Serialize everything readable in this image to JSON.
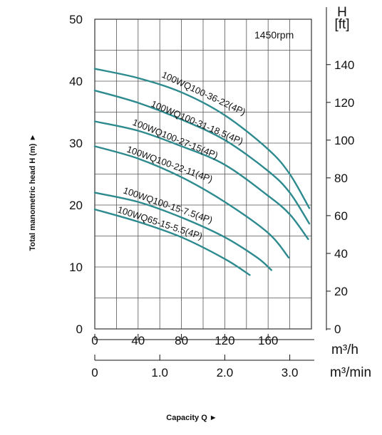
{
  "chart_data": {
    "type": "line",
    "annotation": "1450rpm",
    "xlabel": "Capacity Q",
    "ylabel": "Total manometric head H (m)",
    "right_axis_label": "H",
    "right_axis_unit": "[ft]",
    "x_unit_primary": "m³/h",
    "x_unit_secondary": "m³/min",
    "xlim": [
      0,
      200
    ],
    "ylim": [
      0,
      50
    ],
    "x_ticks_primary": [
      0,
      40,
      80,
      120,
      160
    ],
    "x_ticks_secondary": [
      "0",
      "1.0",
      "2.0",
      "3.0"
    ],
    "y_ticks_left": [
      0,
      10,
      20,
      30,
      40,
      50
    ],
    "y_ticks_right": [
      0,
      20,
      40,
      60,
      80,
      100,
      120,
      140
    ],
    "grid": true,
    "series": [
      {
        "name": "100WQ100-36-22(4P)",
        "x": [
          0,
          40,
          80,
          120,
          160,
          180,
          198
        ],
        "y": [
          42,
          40.5,
          38.2,
          34.5,
          29,
          25,
          19.5
        ]
      },
      {
        "name": "100WQ100-31-18.5(4P)",
        "x": [
          0,
          40,
          80,
          120,
          160,
          180,
          198
        ],
        "y": [
          38.5,
          36.5,
          33.8,
          30.5,
          25.5,
          22,
          17
        ]
      },
      {
        "name": "100WQ100-27-15(4P)",
        "x": [
          0,
          40,
          80,
          120,
          160,
          180,
          197
        ],
        "y": [
          33.5,
          32,
          29.5,
          26.5,
          21.5,
          18.5,
          14.5
        ]
      },
      {
        "name": "100WQ100-22-11(4P)",
        "x": [
          0,
          40,
          80,
          120,
          160,
          179
        ],
        "y": [
          29.5,
          27.5,
          24.5,
          20.5,
          15.5,
          11.5
        ]
      },
      {
        "name": "100WQ100-15-7.5(4P)",
        "x": [
          0,
          40,
          80,
          120,
          150,
          163
        ],
        "y": [
          22,
          20.5,
          18,
          14.8,
          11.5,
          9.5
        ]
      },
      {
        "name": "100WQ65-15-5.5(4P)",
        "x": [
          0,
          40,
          80,
          120,
          143
        ],
        "y": [
          19.3,
          17.3,
          14.8,
          11.3,
          8.7
        ]
      }
    ]
  }
}
